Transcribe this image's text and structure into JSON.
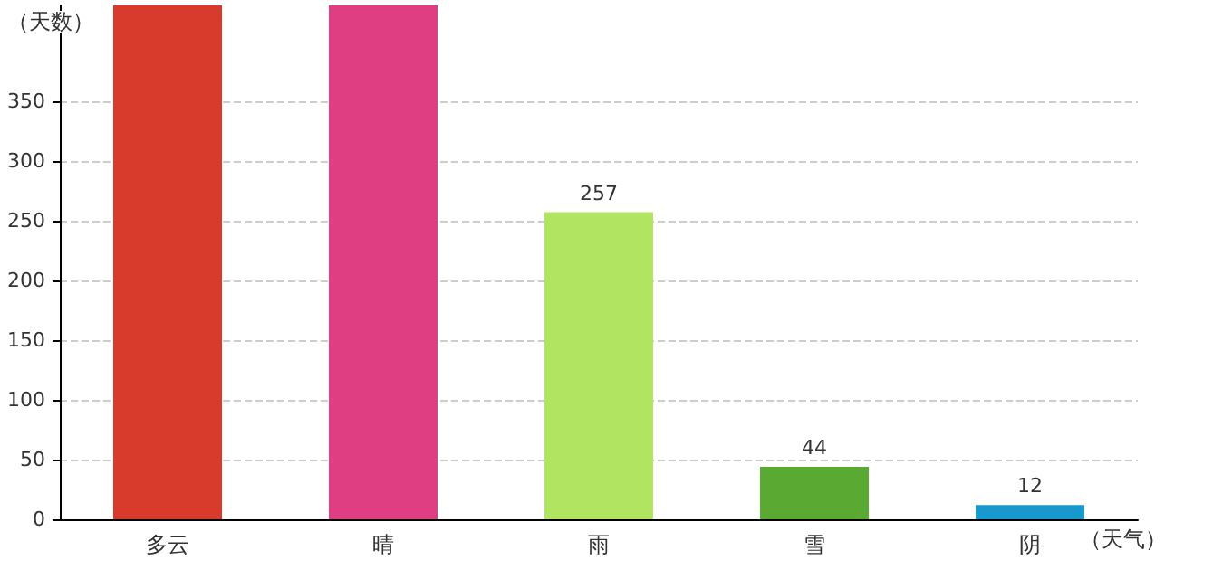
{
  "chart_data": {
    "type": "bar",
    "xlabel": "（天气）",
    "ylabel": "（天数）",
    "categories": [
      "多云",
      "晴",
      "雨",
      "雪",
      "阴"
    ],
    "values": [
      430,
      430,
      257,
      44,
      12
    ],
    "colors": [
      "#d83a2c",
      "#df3f82",
      "#b1e460",
      "#5aa933",
      "#1898cc"
    ],
    "value_labels": [
      null,
      null,
      "257",
      "44",
      "12"
    ],
    "ylim": [
      0,
      430
    ],
    "yticks": [
      0,
      50,
      100,
      150,
      200,
      250,
      300,
      350
    ],
    "grid": "y"
  }
}
